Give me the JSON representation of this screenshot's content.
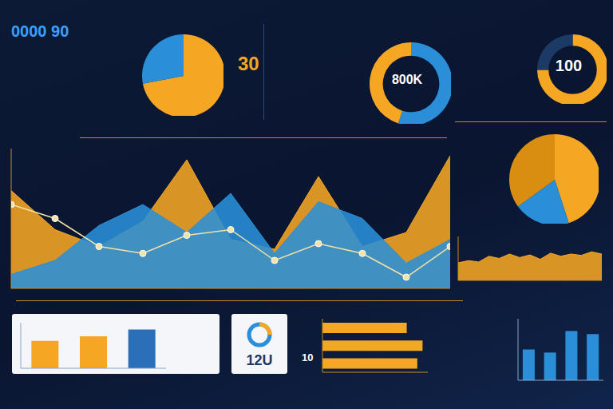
{
  "texts": {
    "headline": "0000 90",
    "kpi": "30",
    "badge": "12U",
    "bar_note": "10"
  },
  "chart_data": [
    {
      "type": "pie",
      "values": [
        72,
        28
      ],
      "colors": [
        "#f5a623",
        "#2a8fd8"
      ]
    },
    {
      "type": "donut",
      "title": "800K",
      "values": [
        55,
        45
      ],
      "colors": [
        "#2a8fd8",
        "#f5a623"
      ]
    },
    {
      "type": "donut",
      "title": "100",
      "values": [
        75,
        25
      ],
      "colors": [
        "#f5a623",
        "#1c3a66"
      ]
    },
    {
      "type": "area",
      "x": [
        0,
        1,
        2,
        3,
        4,
        5,
        6,
        7,
        8,
        9,
        10
      ],
      "xlim": [
        0,
        10
      ],
      "ylim": [
        0,
        100
      ],
      "tick_labels": false,
      "series": [
        {
          "type": "area",
          "color": "#f5a623",
          "values": [
            70,
            42,
            30,
            48,
            92,
            35,
            28,
            80,
            30,
            40,
            95
          ]
        },
        {
          "type": "area",
          "color": "#2a8fd8",
          "values": [
            10,
            20,
            45,
            60,
            40,
            68,
            25,
            62,
            50,
            18,
            35
          ]
        },
        {
          "type": "line",
          "color": "#f3e3a6",
          "marker": "circle",
          "values": [
            60,
            50,
            30,
            25,
            38,
            42,
            20,
            32,
            25,
            8,
            30
          ]
        }
      ]
    },
    {
      "type": "pie",
      "values": [
        45,
        20,
        35
      ],
      "colors": [
        "#f5a623",
        "#2a8fd8",
        "#d98e12"
      ]
    },
    {
      "type": "area",
      "x": [
        0,
        1,
        2,
        3,
        4,
        5,
        6,
        7,
        8,
        9,
        10,
        11,
        12,
        13,
        14
      ],
      "xlim": [
        0,
        14
      ],
      "ylim": [
        0,
        100
      ],
      "tick_labels": false,
      "color": "#f5a623",
      "values": [
        40,
        45,
        42,
        55,
        50,
        60,
        52,
        58,
        48,
        62,
        55,
        60,
        57,
        65,
        60
      ]
    },
    {
      "type": "bar",
      "ylim": [
        0,
        100
      ],
      "tick_labels": false,
      "values": [
        60,
        70,
        85
      ],
      "colors": [
        "#f5a623",
        "#f5a623",
        "#2a6fb8"
      ]
    },
    {
      "type": "bar",
      "ylim": [
        0,
        100
      ],
      "tick_labels": false,
      "values": [
        50,
        45,
        80,
        75
      ],
      "colors": [
        "#2a8fd8",
        "#2a8fd8",
        "#2a8fd8",
        "#2a8fd8"
      ]
    },
    {
      "type": "bar",
      "orientation": "horizontal",
      "xlim": [
        0,
        100
      ],
      "tick_labels": false,
      "values": [
        80,
        95,
        90
      ],
      "colors": [
        "#f5a623",
        "#f5a623",
        "#f5a623"
      ]
    }
  ]
}
